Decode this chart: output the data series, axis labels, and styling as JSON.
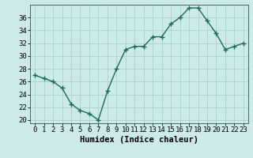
{
  "x": [
    0,
    1,
    2,
    3,
    4,
    5,
    6,
    7,
    8,
    9,
    10,
    11,
    12,
    13,
    14,
    15,
    16,
    17,
    18,
    19,
    20,
    21,
    22,
    23
  ],
  "y": [
    27,
    26.5,
    26,
    25,
    22.5,
    21.5,
    21,
    20,
    24.5,
    28,
    31,
    31.5,
    31.5,
    33,
    33,
    35,
    36,
    37.5,
    37.5,
    35.5,
    33.5,
    31,
    31.5,
    32
  ],
  "line_color": "#1a6b5a",
  "marker": "+",
  "marker_size": 4,
  "marker_lw": 1.0,
  "line_width": 1.0,
  "bg_color": "#cdeaea",
  "grid_color": "#aacece",
  "xlabel": "Humidex (Indice chaleur)",
  "xlim": [
    -0.5,
    23.5
  ],
  "ylim": [
    19.5,
    38
  ],
  "yticks": [
    20,
    22,
    24,
    26,
    28,
    30,
    32,
    34,
    36
  ],
  "xticks": [
    0,
    1,
    2,
    3,
    4,
    5,
    6,
    7,
    8,
    9,
    10,
    11,
    12,
    13,
    14,
    15,
    16,
    17,
    18,
    19,
    20,
    21,
    22,
    23
  ],
  "tick_fontsize": 6.5,
  "label_fontsize": 7.5
}
